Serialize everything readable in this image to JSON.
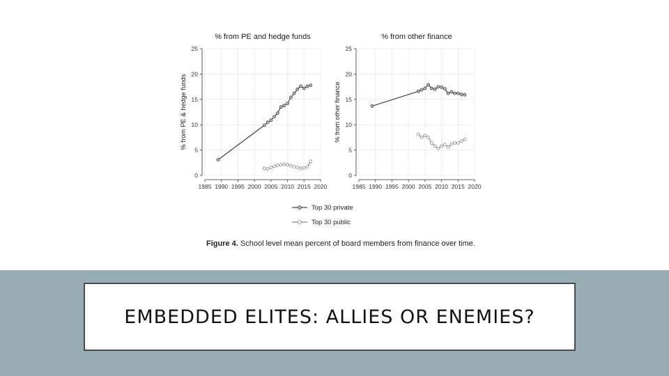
{
  "slide": {
    "title": "EMBEDDED ELITES: ALLIES OR ENEMIES?",
    "caption_label": "Figure 4.",
    "caption_text": "School level mean percent of board members from finance over time."
  },
  "colors": {
    "band": "#98acb3",
    "private_line": "#444444",
    "public_line": "#888888"
  },
  "legend": [
    {
      "name": "Top 30 private",
      "key": "private"
    },
    {
      "name": "Top 30 public",
      "key": "public"
    }
  ],
  "chart_data": [
    {
      "type": "line",
      "title": "% from PE and hedge funds",
      "xlabel": "",
      "ylabel": "% from PE & hedge funds",
      "xlim": [
        1985,
        2020
      ],
      "ylim": [
        0,
        25
      ],
      "xticks": [
        1985,
        1990,
        1995,
        2000,
        2005,
        2010,
        2015,
        2020
      ],
      "yticks": [
        0,
        5,
        10,
        15,
        20,
        25
      ],
      "grid": true,
      "series": [
        {
          "name": "Top 30 private",
          "x": [
            1989,
            2003,
            2004,
            2005,
            2006,
            2007,
            2008,
            2009,
            2010,
            2011,
            2012,
            2013,
            2014,
            2015,
            2016,
            2017
          ],
          "y": [
            3.1,
            9.9,
            10.5,
            10.9,
            11.6,
            12.3,
            13.5,
            13.8,
            14.2,
            15.4,
            16.2,
            17.0,
            17.6,
            17.2,
            17.6,
            17.8
          ]
        },
        {
          "name": "Top 30 public",
          "x": [
            2003,
            2004,
            2005,
            2006,
            2007,
            2008,
            2009,
            2010,
            2011,
            2012,
            2013,
            2014,
            2015,
            2016,
            2017
          ],
          "y": [
            1.4,
            1.3,
            1.6,
            1.8,
            2.0,
            2.1,
            2.2,
            2.1,
            1.9,
            1.7,
            1.6,
            1.4,
            1.5,
            1.7,
            2.8
          ]
        }
      ]
    },
    {
      "type": "line",
      "title": "% from other finance",
      "xlabel": "",
      "ylabel": "% from other finance",
      "xlim": [
        1985,
        2020
      ],
      "ylim": [
        0,
        25
      ],
      "xticks": [
        1985,
        1990,
        1995,
        2000,
        2005,
        2010,
        2015,
        2020
      ],
      "yticks": [
        0,
        5,
        10,
        15,
        20,
        25
      ],
      "grid": true,
      "series": [
        {
          "name": "Top 30 private",
          "x": [
            1989,
            2003,
            2004,
            2005,
            2006,
            2007,
            2008,
            2009,
            2010,
            2011,
            2012,
            2013,
            2014,
            2015,
            2016,
            2017
          ],
          "y": [
            13.7,
            16.6,
            16.9,
            17.2,
            17.9,
            17.2,
            17.0,
            17.5,
            17.4,
            17.1,
            16.2,
            16.5,
            16.2,
            16.2,
            16.0,
            15.9
          ]
        },
        {
          "name": "Top 30 public",
          "x": [
            2003,
            2004,
            2005,
            2006,
            2007,
            2008,
            2009,
            2010,
            2011,
            2012,
            2013,
            2014,
            2015,
            2016,
            2017
          ],
          "y": [
            8.1,
            7.5,
            7.9,
            7.5,
            6.4,
            5.8,
            5.3,
            5.8,
            6.1,
            5.6,
            6.2,
            6.4,
            6.4,
            6.8,
            7.1
          ]
        }
      ]
    }
  ]
}
